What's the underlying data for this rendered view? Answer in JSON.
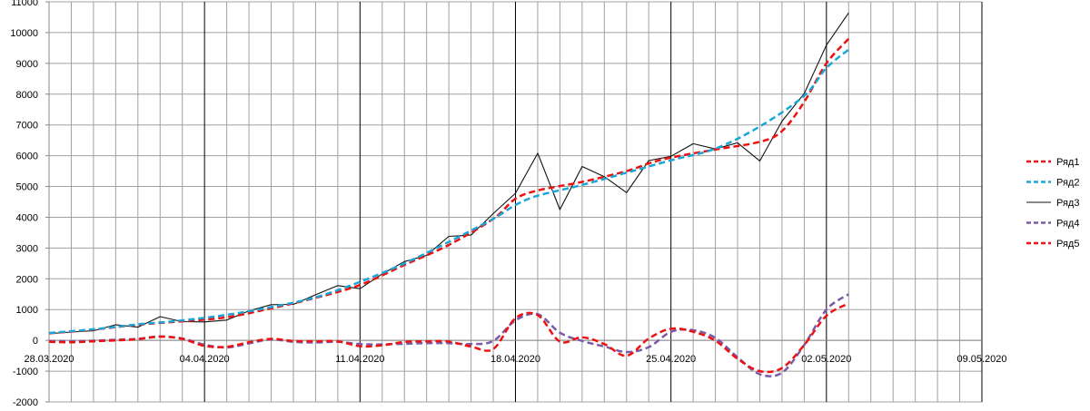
{
  "chart_data": {
    "type": "line",
    "title": "",
    "xlabel": "",
    "ylabel": "",
    "ylim": [
      -2000,
      11000
    ],
    "yticks": [
      -2000,
      -1000,
      0,
      1000,
      2000,
      3000,
      4000,
      5000,
      6000,
      7000,
      8000,
      9000,
      10000,
      11000
    ],
    "ytick_labels": [
      "-2000",
      "-1000",
      "0",
      "1000",
      "2000",
      "3000",
      "4000",
      "5000",
      "6000",
      "7000",
      "8000",
      "9000",
      "10000",
      "11000"
    ],
    "x_start_date": "28.03.2020",
    "xlim_days": [
      0,
      42
    ],
    "xticks_days": [
      0,
      7,
      14,
      21,
      28,
      35,
      42
    ],
    "xtick_labels": [
      "28.03.2020",
      "04.04.2020",
      "11.04.2020",
      "18.04.2020",
      "25.04.2020",
      "02.05.2020",
      "09.05.2020"
    ],
    "grid": true,
    "legend_position": "right",
    "series": [
      {
        "name": "Ряд1",
        "color": "#ee1111",
        "style": "dashed",
        "x": [
          0,
          2,
          4,
          6,
          8,
          10,
          12,
          14,
          16,
          18,
          20,
          21,
          22,
          24,
          26,
          27,
          28,
          30,
          32,
          33,
          34,
          35,
          36
        ],
        "y": [
          230,
          350,
          510,
          620,
          750,
          1040,
          1380,
          1800,
          2450,
          3100,
          3950,
          4600,
          4870,
          5150,
          5500,
          5750,
          5940,
          6200,
          6450,
          6800,
          7750,
          9000,
          9800
        ]
      },
      {
        "name": "Ряд2",
        "color": "#1aa6d8",
        "style": "dashed",
        "x": [
          0,
          2,
          4,
          6,
          8,
          10,
          12,
          14,
          16,
          18,
          20,
          21,
          22,
          24,
          26,
          28,
          30,
          32,
          34,
          35,
          36
        ],
        "y": [
          240,
          360,
          520,
          650,
          830,
          1080,
          1400,
          1900,
          2500,
          3200,
          3950,
          4400,
          4700,
          5050,
          5450,
          5850,
          6230,
          6950,
          7950,
          8850,
          9450
        ]
      },
      {
        "name": "Ряд3",
        "color": "#111111",
        "style": "solid",
        "x": [
          0,
          1,
          2,
          3,
          4,
          5,
          6,
          7,
          8,
          9,
          10,
          11,
          12,
          13,
          14,
          15,
          16,
          17,
          18,
          19,
          20,
          21,
          22,
          23,
          24,
          25,
          26,
          27,
          28,
          29,
          30,
          31,
          32,
          33,
          34,
          35,
          36
        ],
        "y": [
          220,
          270,
          310,
          510,
          430,
          770,
          610,
          600,
          660,
          960,
          1160,
          1170,
          1480,
          1780,
          1680,
          2160,
          2560,
          2760,
          3380,
          3420,
          4120,
          4780,
          6080,
          4250,
          5650,
          5320,
          4800,
          5840,
          5980,
          6390,
          6220,
          6420,
          5830,
          7120,
          8020,
          9590,
          10640
        ]
      },
      {
        "name": "Ряд4",
        "color": "#7a5aa8",
        "style": "dashed",
        "x": [
          0,
          1,
          2,
          3,
          4,
          5,
          6,
          7,
          8,
          9,
          10,
          11,
          12,
          13,
          14,
          15,
          16,
          17,
          18,
          19,
          20,
          21,
          22,
          23,
          24,
          25,
          26,
          27,
          28,
          29,
          30,
          31,
          32,
          33,
          34,
          35,
          36
        ],
        "y": [
          -20,
          -30,
          -10,
          20,
          50,
          130,
          60,
          -140,
          -230,
          -100,
          30,
          -50,
          -70,
          -50,
          -120,
          -130,
          -110,
          -90,
          -90,
          -120,
          -20,
          650,
          850,
          250,
          -20,
          -200,
          -380,
          -220,
          280,
          330,
          80,
          -550,
          -1100,
          -1050,
          -150,
          1000,
          1500
        ]
      },
      {
        "name": "Ряд5",
        "color": "#ee1111",
        "style": "dashed",
        "x": [
          0,
          1,
          2,
          3,
          4,
          5,
          6,
          7,
          8,
          9,
          10,
          11,
          12,
          13,
          14,
          15,
          16,
          17,
          18,
          19,
          20,
          21,
          22,
          23,
          24,
          25,
          26,
          27,
          28,
          29,
          30,
          31,
          32,
          33,
          34,
          35,
          36
        ],
        "y": [
          -50,
          -60,
          -30,
          0,
          40,
          120,
          50,
          -180,
          -210,
          -60,
          50,
          -20,
          -30,
          -30,
          -190,
          -160,
          -50,
          -30,
          -40,
          -200,
          -280,
          720,
          820,
          -40,
          100,
          -120,
          -500,
          60,
          380,
          280,
          -10,
          -600,
          -1000,
          -900,
          -150,
          800,
          1200
        ]
      }
    ]
  }
}
